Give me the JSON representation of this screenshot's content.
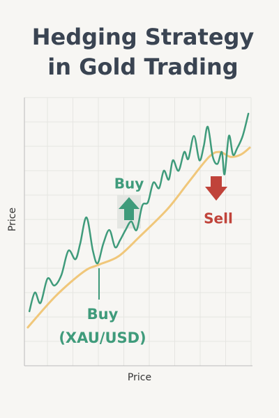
{
  "chart_data": {
    "type": "line",
    "title": [
      "Hedging Strategy",
      "in Gold Trading"
    ],
    "xlabel": "Price",
    "ylabel": "Price",
    "xlim": [
      0,
      100
    ],
    "ylim": [
      0,
      100
    ],
    "grid": true,
    "series": [
      {
        "color": "#3f9b7b",
        "x": [
          2.2,
          4.6,
          7.1,
          10.2,
          13.2,
          16.3,
          19.4,
          22.5,
          24.6,
          27.4,
          30.2,
          32.3,
          34.8,
          37.5,
          40.0,
          42.2,
          44.6,
          47.1,
          49.5,
          52.0,
          54.5,
          56.9,
          59.4,
          61.5,
          63.7,
          65.5,
          68.0,
          70.5,
          72.3,
          74.8,
          77.2,
          79.1,
          80.9,
          83.1,
          85.2,
          87.1,
          88.3,
          90.2,
          92.0,
          93.8,
          96.3,
          98.8
        ],
        "values": [
          20.3,
          27.3,
          23.4,
          32.5,
          29.9,
          33.8,
          42.9,
          39.7,
          45.5,
          55.3,
          42.9,
          38.2,
          45.5,
          50.6,
          44.2,
          46.8,
          50.6,
          53.8,
          50.6,
          59.7,
          61.0,
          68.3,
          66.2,
          72.7,
          69.4,
          76.6,
          72.7,
          79.7,
          77.1,
          85.7,
          76.6,
          81.8,
          89.1,
          77.9,
          75.3,
          79.7,
          71.4,
          85.7,
          78.7,
          81.0,
          85.7,
          94.0
        ]
      },
      {
        "color": "#f0c77a",
        "x": [
          1.5,
          13.8,
          26.2,
          32.9,
          41.5,
          50.8,
          63.1,
          72.3,
          81.5,
          86.2,
          90.8,
          95.4,
          99.4
        ],
        "values": [
          14.3,
          26.0,
          35.1,
          37.7,
          40.8,
          48.1,
          58.4,
          68.3,
          77.9,
          79.7,
          77.9,
          78.7,
          81.3
        ]
      }
    ],
    "annotations": [
      {
        "text": "Buy",
        "color": "#3f9b7b"
      },
      {
        "text": "Sell",
        "color": "#c0433a"
      },
      {
        "text": [
          "Buy",
          "(XAU/USD)"
        ],
        "color": "#3f9b7b"
      }
    ]
  }
}
